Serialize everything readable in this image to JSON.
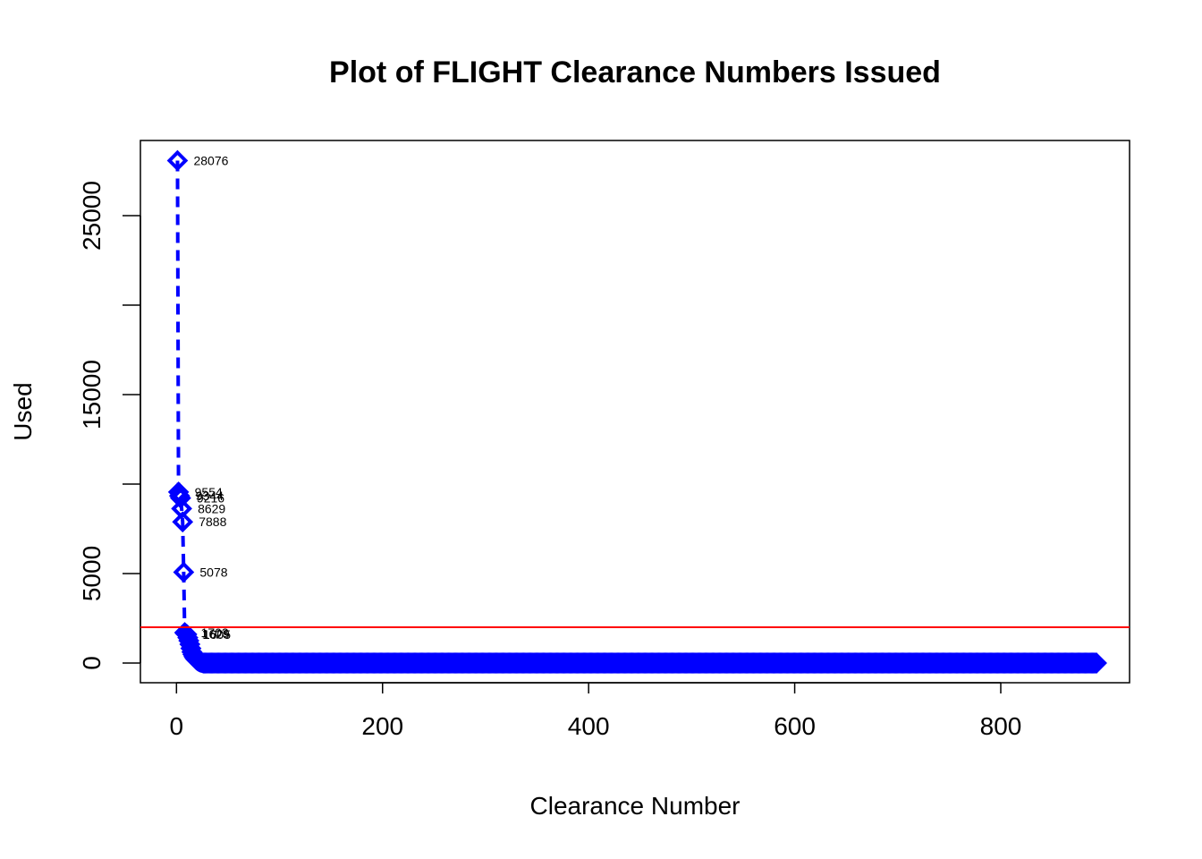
{
  "chart_data": {
    "type": "line",
    "title": "Plot of FLIGHT Clearance Numbers Issued",
    "xlabel": "Clearance Number",
    "ylabel": "Used",
    "xlim": [
      -35,
      925
    ],
    "ylim": [
      -1100,
      29200
    ],
    "xticks": [
      0,
      200,
      400,
      600,
      800
    ],
    "yticks": [
      0,
      5000,
      15000,
      25000
    ],
    "yticks_unlabeled": [
      10000,
      20000
    ],
    "tail_range": [
      26,
      893
    ],
    "tail_value": 0,
    "series": [
      {
        "line_type": "dashed",
        "color": "#0000ff",
        "marker": "diamond",
        "points": [
          {
            "x": 1,
            "y": 28076,
            "label": "28076"
          },
          {
            "x": 2,
            "y": 9554,
            "label": "9554"
          },
          {
            "x": 3,
            "y": 9344,
            "label": "9344"
          },
          {
            "x": 4,
            "y": 9216,
            "label": "9216"
          },
          {
            "x": 5,
            "y": 8629,
            "label": "8629"
          },
          {
            "x": 6,
            "y": 7888,
            "label": "7888"
          },
          {
            "x": 7,
            "y": 5078,
            "label": "5078"
          },
          {
            "x": 8,
            "y": 1703,
            "label": "1703"
          },
          {
            "x": 9,
            "y": 1629,
            "label": "1629"
          },
          {
            "x": 10,
            "y": 1605,
            "label": "1605"
          },
          {
            "x": 11,
            "y": 1420
          },
          {
            "x": 12,
            "y": 1250
          },
          {
            "x": 13,
            "y": 1050
          },
          {
            "x": 14,
            "y": 820
          },
          {
            "x": 15,
            "y": 620
          },
          {
            "x": 16,
            "y": 480
          },
          {
            "x": 17,
            "y": 360
          },
          {
            "x": 18,
            "y": 270
          },
          {
            "x": 19,
            "y": 200
          },
          {
            "x": 20,
            "y": 150
          },
          {
            "x": 21,
            "y": 110
          },
          {
            "x": 22,
            "y": 80
          },
          {
            "x": 23,
            "y": 55
          },
          {
            "x": 24,
            "y": 35
          },
          {
            "x": 25,
            "y": 20
          }
        ]
      }
    ],
    "reference_line": {
      "y": 2000,
      "color": "#ff0000"
    },
    "grid": false,
    "legend": "none"
  }
}
